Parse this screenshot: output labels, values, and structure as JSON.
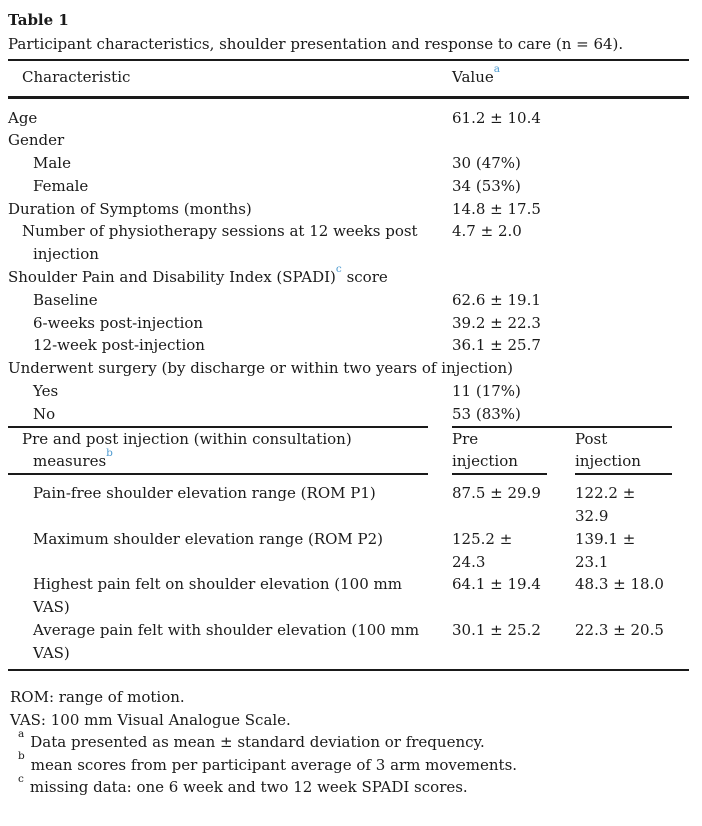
{
  "colors": {
    "background": "#ffffff",
    "text": "#1a1a1a",
    "rule": "#1a1a1a",
    "accent": "#4d9ad0"
  },
  "table_label": "Table 1",
  "caption": "Participant characteristics, shoulder presentation and response to care (n = 64).",
  "table": {
    "header": {
      "characteristic": "Characteristic",
      "value": "Value",
      "value_footnote_ref": "a"
    },
    "section1": {
      "rows": [
        {
          "label": "Age",
          "value": "61.2 ± 10.4"
        },
        {
          "label": "Gender",
          "value": "",
          "wide": true
        },
        {
          "label": "Male",
          "value": "30 (47%)",
          "indent": true
        },
        {
          "label": "Female",
          "value": "34 (53%)",
          "indent": true
        },
        {
          "label": "Duration of Symptoms (months)",
          "value": "14.8 ± 17.5"
        },
        {
          "label": "Number of physiotherapy sessions at 12 weeks post injection",
          "value": "4.7 ± 2.0",
          "hanging": true
        },
        {
          "label": "Shoulder Pain and Disability Index (SPADI)",
          "footnote_ref": "c",
          "label_suffix": " score",
          "value": "",
          "wide": true
        },
        {
          "label": "Baseline",
          "value": "62.6 ± 19.1",
          "indent": true
        },
        {
          "label": "6-weeks post-injection",
          "value": "39.2 ± 22.3",
          "indent": true
        },
        {
          "label": "12-week post-injection",
          "value": "36.1 ± 25.7",
          "indent": true
        },
        {
          "label": "Underwent surgery (by discharge or within two years of injection)",
          "value": "",
          "wide": true
        },
        {
          "label": "Yes",
          "value": "11 (17%)",
          "indent": true
        },
        {
          "label": "No",
          "value": "53 (83%)",
          "indent": true
        }
      ]
    },
    "section2": {
      "header": {
        "label": "Pre and post injection (within consultation) measures",
        "footnote_ref": "b",
        "pre": "Pre injection",
        "post": "Post injection"
      },
      "rows": [
        {
          "label": "Pain-free shoulder elevation range (ROM P1)",
          "pre": "87.5 ± 29.9",
          "post": "122.2 ± 32.9"
        },
        {
          "label": "Maximum shoulder elevation range (ROM P2)",
          "pre": "125.2 ± 24.3",
          "post": "139.1 ± 23.1"
        },
        {
          "label": "Highest pain felt on shoulder elevation (100 mm VAS)",
          "pre": "64.1 ± 19.4",
          "post": "48.3 ± 18.0"
        },
        {
          "label": "Average pain felt with shoulder elevation (100 mm VAS)",
          "pre": "30.1 ± 25.2",
          "post": "22.3 ± 20.5"
        }
      ]
    }
  },
  "footnotes": {
    "plain": [
      "ROM: range of motion.",
      "VAS: 100 mm Visual Analogue Scale."
    ],
    "lettered": [
      {
        "marker": "a",
        "text": "Data presented as mean ± standard deviation or frequency."
      },
      {
        "marker": "b",
        "text": "mean scores from per participant average of 3 arm movements."
      },
      {
        "marker": "c",
        "text": "missing data: one 6 week and two 12 week SPADI scores."
      }
    ]
  }
}
